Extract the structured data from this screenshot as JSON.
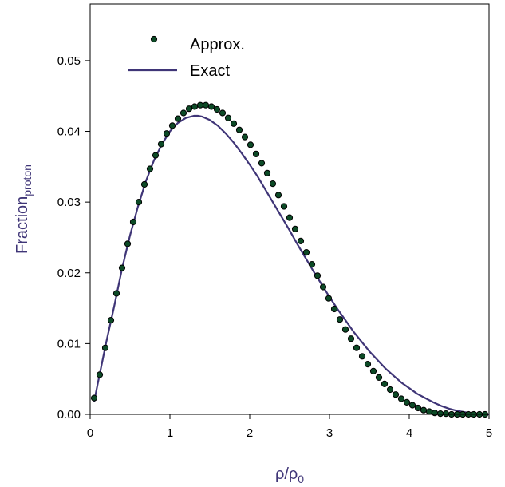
{
  "chart_data": {
    "type": "line",
    "xlabel": "ρ/ρ",
    "xlabel_sub": "0",
    "ylabel": "Fraction",
    "ylabel_sub": "proton",
    "xlim": [
      0,
      5
    ],
    "ylim": [
      0,
      0.058
    ],
    "x_ticks": [
      0,
      1,
      2,
      3,
      4,
      5
    ],
    "x_tick_labels": [
      "0",
      "1",
      "2",
      "3",
      "4",
      "5"
    ],
    "y_ticks": [
      0,
      0.01,
      0.02,
      0.03,
      0.04,
      0.05
    ],
    "y_tick_labels": [
      "0.00",
      "0.01",
      "0.02",
      "0.03",
      "0.04",
      "0.05"
    ],
    "grid": false,
    "legend_position": "top-left",
    "axis_title_color": "#3f3577",
    "series": [
      {
        "name": "Approx.",
        "style": "markers",
        "marker_color": "#0c4a26",
        "marker_edge_color": "#000000",
        "x": [
          0.05,
          0.12,
          0.19,
          0.26,
          0.33,
          0.4,
          0.47,
          0.54,
          0.61,
          0.68,
          0.75,
          0.82,
          0.89,
          0.96,
          1.03,
          1.1,
          1.17,
          1.24,
          1.31,
          1.38,
          1.45,
          1.52,
          1.59,
          1.66,
          1.73,
          1.8,
          1.87,
          1.94,
          2.01,
          2.08,
          2.15,
          2.22,
          2.29,
          2.36,
          2.43,
          2.5,
          2.57,
          2.64,
          2.71,
          2.78,
          2.85,
          2.92,
          2.99,
          3.06,
          3.13,
          3.2,
          3.27,
          3.34,
          3.41,
          3.48,
          3.55,
          3.62,
          3.69,
          3.76,
          3.83,
          3.9,
          3.97,
          4.04,
          4.11,
          4.18,
          4.25,
          4.32,
          4.39,
          4.46,
          4.53,
          4.6,
          4.67,
          4.74,
          4.81,
          4.88,
          4.95
        ],
        "y": [
          0.0023,
          0.0056,
          0.0094,
          0.0133,
          0.0171,
          0.0207,
          0.0241,
          0.0272,
          0.03,
          0.0325,
          0.0347,
          0.0366,
          0.0382,
          0.0397,
          0.0408,
          0.0418,
          0.0426,
          0.0432,
          0.0435,
          0.0437,
          0.0437,
          0.0435,
          0.0431,
          0.0426,
          0.0419,
          0.0411,
          0.0402,
          0.0392,
          0.0381,
          0.0368,
          0.0355,
          0.0341,
          0.0326,
          0.031,
          0.0294,
          0.0278,
          0.0262,
          0.0245,
          0.0229,
          0.0212,
          0.0196,
          0.018,
          0.0164,
          0.0149,
          0.0134,
          0.012,
          0.0107,
          0.0094,
          0.0082,
          0.0071,
          0.0061,
          0.0052,
          0.0043,
          0.0035,
          0.0028,
          0.0022,
          0.0017,
          0.0013,
          0.0009,
          0.0006,
          0.0004,
          0.0002,
          0.0001,
          0.0001,
          0.0,
          0.0,
          0.0,
          0.0,
          0.0,
          0.0,
          0.0
        ]
      },
      {
        "name": "Exact",
        "style": "line",
        "line_color": "#3f3577",
        "x": [
          0.05,
          0.1,
          0.2,
          0.3,
          0.4,
          0.5,
          0.6,
          0.7,
          0.8,
          0.9,
          1.0,
          1.1,
          1.2,
          1.3,
          1.35,
          1.4,
          1.5,
          1.6,
          1.7,
          1.8,
          1.9,
          2.0,
          2.1,
          2.2,
          2.3,
          2.4,
          2.5,
          2.6,
          2.7,
          2.8,
          2.9,
          3.0,
          3.1,
          3.2,
          3.3,
          3.4,
          3.5,
          3.6,
          3.7,
          3.8,
          3.9,
          4.0,
          4.1,
          4.2,
          4.3,
          4.4,
          4.5,
          4.6,
          4.7,
          4.8,
          4.9,
          5.0
        ],
        "y": [
          0.0018,
          0.0046,
          0.0101,
          0.0152,
          0.0206,
          0.0253,
          0.0294,
          0.033,
          0.0359,
          0.0382,
          0.04,
          0.0412,
          0.0419,
          0.0422,
          0.0422,
          0.0421,
          0.0416,
          0.0408,
          0.0397,
          0.0384,
          0.0369,
          0.0353,
          0.0336,
          0.0317,
          0.0298,
          0.0279,
          0.026,
          0.024,
          0.0221,
          0.0202,
          0.0184,
          0.0166,
          0.0149,
          0.0133,
          0.0117,
          0.0103,
          0.0089,
          0.0077,
          0.0065,
          0.0055,
          0.0045,
          0.0037,
          0.0029,
          0.0023,
          0.0017,
          0.0012,
          0.0008,
          0.0005,
          0.0003,
          0.0001,
          0.0,
          0.0
        ]
      }
    ]
  }
}
